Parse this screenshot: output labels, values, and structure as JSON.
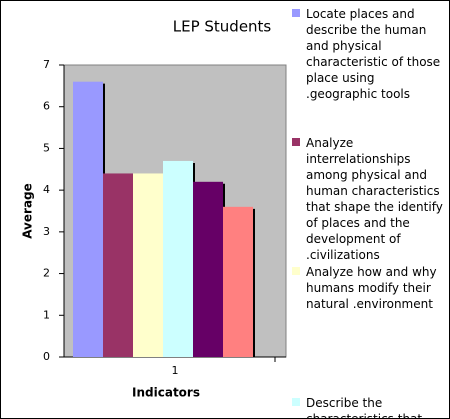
{
  "chart_data": {
    "type": "bar",
    "title": "LEP Students",
    "xlabel": "Indicators",
    "ylabel": "Average",
    "categories": [
      "1"
    ],
    "series": [
      {
        "name": "Locate places and describe the human and physical characteristic of those place using .geographic tools",
        "color": "#9999ff",
        "values": [
          6.6
        ]
      },
      {
        "name": "Analyze interrelationships among physical and human characteristics that shape the identify of places and the development of .civilizations",
        "color": "#993366",
        "values": [
          4.4
        ]
      },
      {
        "name": "Analyze how and why humans modify their natural .environment",
        "color": "#ffffcc",
        "values": [
          4.4
        ]
      },
      {
        "name": "Describe the characteristics that",
        "color": "#ccffff",
        "values": [
          4.7
        ]
      },
      {
        "color": "#660066",
        "values": [
          4.2
        ]
      },
      {
        "color": "#ff8080",
        "values": [
          3.6
        ]
      }
    ],
    "ylim": [
      0,
      7
    ],
    "yticks": [
      0,
      1,
      2,
      3,
      4,
      5,
      6,
      7
    ],
    "grid": false
  }
}
